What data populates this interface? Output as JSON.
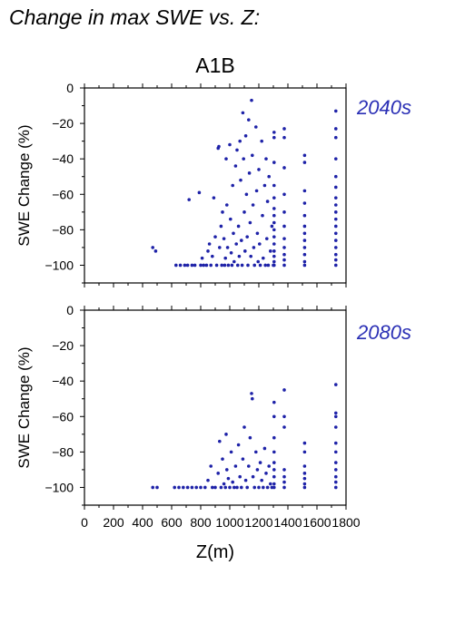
{
  "page": {
    "title": "Change in max SWE vs. Z:"
  },
  "colors": {
    "points": "#1e22a8",
    "period_label": "#2a2fb5",
    "axes": "#000000"
  },
  "chart_data": [
    {
      "type": "scatter",
      "title": "A1B",
      "period_label": "2040s",
      "xlabel": "Z(m)",
      "ylabel": "SWE Change (%)",
      "xlim": [
        0,
        1800
      ],
      "ylim": [
        -110,
        0
      ],
      "xticks": [
        "0",
        "200",
        "400",
        "600",
        "800",
        "1000",
        "1200",
        "1400",
        "1600",
        "1800"
      ],
      "yticks": [
        "0",
        "−20",
        "−40",
        "−60",
        "−80",
        "−100"
      ],
      "show_xticklabels": false,
      "grid": false,
      "points": [
        [
          470,
          -90
        ],
        [
          490,
          -92
        ],
        [
          630,
          -100
        ],
        [
          660,
          -100
        ],
        [
          690,
          -100
        ],
        [
          710,
          -100
        ],
        [
          720,
          -63
        ],
        [
          740,
          -100
        ],
        [
          760,
          -100
        ],
        [
          790,
          -59
        ],
        [
          800,
          -100
        ],
        [
          810,
          -96
        ],
        [
          820,
          -100
        ],
        [
          840,
          -100
        ],
        [
          850,
          -92
        ],
        [
          860,
          -88
        ],
        [
          870,
          -100
        ],
        [
          880,
          -95
        ],
        [
          890,
          -62
        ],
        [
          900,
          -84
        ],
        [
          910,
          -100
        ],
        [
          920,
          -34
        ],
        [
          925,
          -33
        ],
        [
          930,
          -90
        ],
        [
          940,
          -78
        ],
        [
          945,
          -100
        ],
        [
          950,
          -70
        ],
        [
          960,
          -85
        ],
        [
          965,
          -100
        ],
        [
          970,
          -96
        ],
        [
          975,
          -40
        ],
        [
          980,
          -66
        ],
        [
          985,
          -90
        ],
        [
          990,
          -100
        ],
        [
          1000,
          -32
        ],
        [
          1005,
          -74
        ],
        [
          1010,
          -93
        ],
        [
          1015,
          -100
        ],
        [
          1020,
          -55
        ],
        [
          1025,
          -82
        ],
        [
          1030,
          -98
        ],
        [
          1040,
          -44
        ],
        [
          1045,
          -88
        ],
        [
          1050,
          -35
        ],
        [
          1055,
          -100
        ],
        [
          1060,
          -78
        ],
        [
          1065,
          -95
        ],
        [
          1070,
          -30
        ],
        [
          1075,
          -52
        ],
        [
          1080,
          -86
        ],
        [
          1085,
          -100
        ],
        [
          1090,
          -14
        ],
        [
          1095,
          -40
        ],
        [
          1100,
          -70
        ],
        [
          1105,
          -92
        ],
        [
          1110,
          -27
        ],
        [
          1115,
          -60
        ],
        [
          1120,
          -84
        ],
        [
          1125,
          -100
        ],
        [
          1130,
          -18
        ],
        [
          1135,
          -48
        ],
        [
          1140,
          -76
        ],
        [
          1145,
          -95
        ],
        [
          1150,
          -7
        ],
        [
          1155,
          -38
        ],
        [
          1160,
          -66
        ],
        [
          1165,
          -90
        ],
        [
          1170,
          -100
        ],
        [
          1180,
          -22
        ],
        [
          1185,
          -58
        ],
        [
          1190,
          -82
        ],
        [
          1195,
          -98
        ],
        [
          1200,
          -46
        ],
        [
          1205,
          -88
        ],
        [
          1210,
          -100
        ],
        [
          1220,
          -30
        ],
        [
          1225,
          -72
        ],
        [
          1230,
          -96
        ],
        [
          1240,
          -55
        ],
        [
          1245,
          -100
        ],
        [
          1250,
          -40
        ],
        [
          1255,
          -85
        ],
        [
          1260,
          -64
        ],
        [
          1265,
          -100
        ],
        [
          1270,
          -50
        ],
        [
          1280,
          -92
        ],
        [
          1290,
          -78
        ],
        [
          1300,
          -100
        ],
        [
          1305,
          -25
        ],
        [
          1305,
          -28
        ],
        [
          1305,
          -42
        ],
        [
          1305,
          -55
        ],
        [
          1305,
          -62
        ],
        [
          1305,
          -68
        ],
        [
          1305,
          -72
        ],
        [
          1305,
          -76
        ],
        [
          1305,
          -80
        ],
        [
          1305,
          -84
        ],
        [
          1305,
          -88
        ],
        [
          1305,
          -92
        ],
        [
          1305,
          -95
        ],
        [
          1305,
          -98
        ],
        [
          1305,
          -100
        ],
        [
          1375,
          -23
        ],
        [
          1375,
          -28
        ],
        [
          1375,
          -45
        ],
        [
          1375,
          -60
        ],
        [
          1375,
          -70
        ],
        [
          1375,
          -78
        ],
        [
          1375,
          -85
        ],
        [
          1375,
          -90
        ],
        [
          1375,
          -94
        ],
        [
          1375,
          -97
        ],
        [
          1375,
          -100
        ],
        [
          1515,
          -38
        ],
        [
          1515,
          -42
        ],
        [
          1515,
          -58
        ],
        [
          1515,
          -65
        ],
        [
          1515,
          -72
        ],
        [
          1515,
          -78
        ],
        [
          1515,
          -82
        ],
        [
          1515,
          -86
        ],
        [
          1515,
          -90
        ],
        [
          1515,
          -94
        ],
        [
          1515,
          -98
        ],
        [
          1515,
          -100
        ],
        [
          1730,
          -13
        ],
        [
          1730,
          -23
        ],
        [
          1730,
          -28
        ],
        [
          1730,
          -40
        ],
        [
          1730,
          -50
        ],
        [
          1730,
          -56
        ],
        [
          1730,
          -62
        ],
        [
          1730,
          -66
        ],
        [
          1730,
          -70
        ],
        [
          1730,
          -74
        ],
        [
          1730,
          -78
        ],
        [
          1730,
          -82
        ],
        [
          1730,
          -86
        ],
        [
          1730,
          -90
        ],
        [
          1730,
          -94
        ],
        [
          1730,
          -97
        ],
        [
          1730,
          -100
        ]
      ]
    },
    {
      "type": "scatter",
      "title": "",
      "period_label": "2080s",
      "xlabel": "Z(m)",
      "ylabel": "SWE Change (%)",
      "xlim": [
        0,
        1800
      ],
      "ylim": [
        -110,
        0
      ],
      "xticks": [
        "0",
        "200",
        "400",
        "600",
        "800",
        "1000",
        "1200",
        "1400",
        "1600",
        "1800"
      ],
      "yticks": [
        "0",
        "−20",
        "−40",
        "−60",
        "−80",
        "−100"
      ],
      "show_xticklabels": true,
      "grid": false,
      "points": [
        [
          470,
          -100
        ],
        [
          500,
          -100
        ],
        [
          620,
          -100
        ],
        [
          650,
          -100
        ],
        [
          680,
          -100
        ],
        [
          710,
          -100
        ],
        [
          740,
          -100
        ],
        [
          770,
          -100
        ],
        [
          800,
          -100
        ],
        [
          830,
          -100
        ],
        [
          850,
          -96
        ],
        [
          870,
          -88
        ],
        [
          880,
          -100
        ],
        [
          900,
          -100
        ],
        [
          920,
          -92
        ],
        [
          930,
          -74
        ],
        [
          940,
          -100
        ],
        [
          950,
          -84
        ],
        [
          960,
          -98
        ],
        [
          970,
          -100
        ],
        [
          975,
          -70
        ],
        [
          980,
          -90
        ],
        [
          990,
          -95
        ],
        [
          1000,
          -100
        ],
        [
          1010,
          -80
        ],
        [
          1020,
          -97
        ],
        [
          1030,
          -100
        ],
        [
          1040,
          -88
        ],
        [
          1050,
          -100
        ],
        [
          1060,
          -76
        ],
        [
          1070,
          -94
        ],
        [
          1080,
          -100
        ],
        [
          1090,
          -84
        ],
        [
          1100,
          -66
        ],
        [
          1110,
          -96
        ],
        [
          1120,
          -100
        ],
        [
          1130,
          -88
        ],
        [
          1140,
          -72
        ],
        [
          1150,
          -47
        ],
        [
          1155,
          -50
        ],
        [
          1160,
          -94
        ],
        [
          1170,
          -100
        ],
        [
          1180,
          -80
        ],
        [
          1190,
          -90
        ],
        [
          1200,
          -100
        ],
        [
          1210,
          -86
        ],
        [
          1220,
          -96
        ],
        [
          1230,
          -100
        ],
        [
          1240,
          -78
        ],
        [
          1250,
          -92
        ],
        [
          1260,
          -100
        ],
        [
          1270,
          -88
        ],
        [
          1280,
          -98
        ],
        [
          1290,
          -100
        ],
        [
          1305,
          -52
        ],
        [
          1305,
          -60
        ],
        [
          1305,
          -72
        ],
        [
          1305,
          -80
        ],
        [
          1305,
          -86
        ],
        [
          1305,
          -90
        ],
        [
          1305,
          -94
        ],
        [
          1305,
          -98
        ],
        [
          1305,
          -100
        ],
        [
          1375,
          -45
        ],
        [
          1375,
          -60
        ],
        [
          1375,
          -66
        ],
        [
          1375,
          -90
        ],
        [
          1375,
          -94
        ],
        [
          1375,
          -97
        ],
        [
          1375,
          -100
        ],
        [
          1515,
          -75
        ],
        [
          1515,
          -80
        ],
        [
          1515,
          -88
        ],
        [
          1515,
          -92
        ],
        [
          1515,
          -95
        ],
        [
          1515,
          -98
        ],
        [
          1515,
          -100
        ],
        [
          1730,
          -42
        ],
        [
          1730,
          -58
        ],
        [
          1730,
          -60
        ],
        [
          1730,
          -66
        ],
        [
          1730,
          -75
        ],
        [
          1730,
          -80
        ],
        [
          1730,
          -86
        ],
        [
          1730,
          -90
        ],
        [
          1730,
          -94
        ],
        [
          1730,
          -97
        ],
        [
          1730,
          -100
        ]
      ]
    }
  ]
}
